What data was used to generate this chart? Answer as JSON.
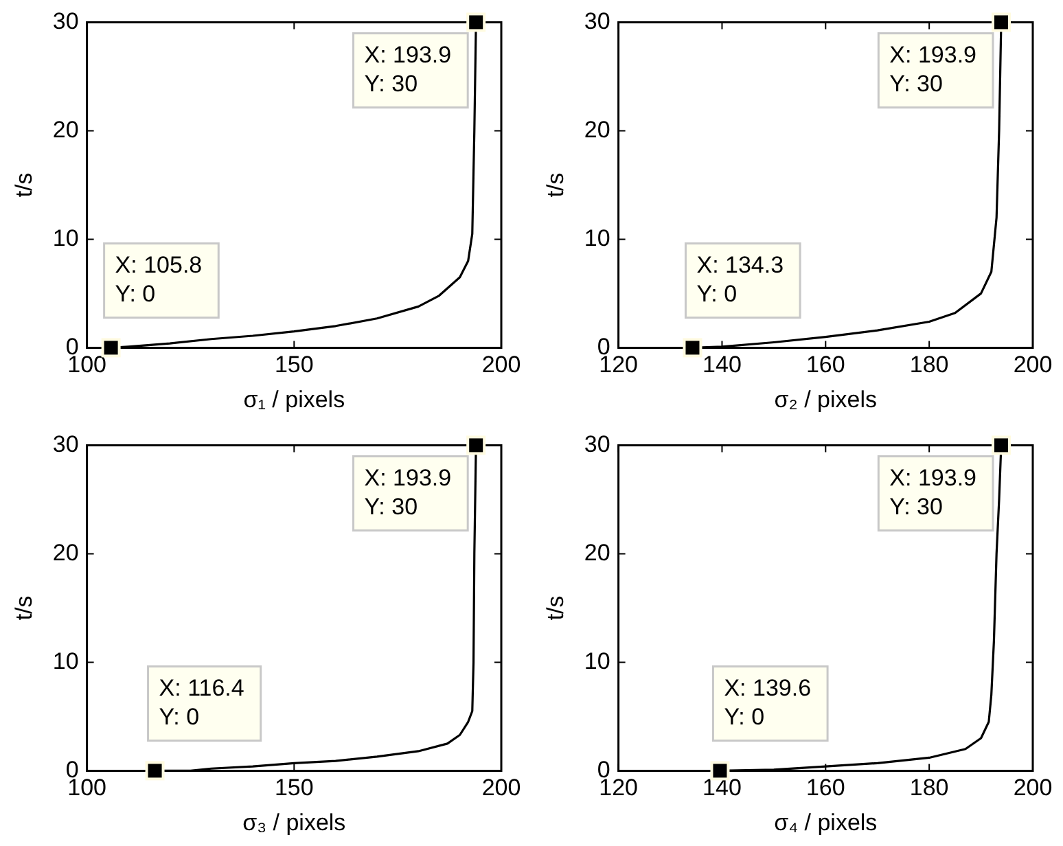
{
  "chart_data": [
    {
      "type": "line",
      "xlabel": "σ₁ / pixels",
      "ylabel": "t/s",
      "xlim": [
        100,
        200
      ],
      "xticks": [
        100,
        150,
        200
      ],
      "ylim": [
        0,
        30
      ],
      "yticks": [
        0,
        10,
        20,
        30
      ],
      "grid": false,
      "legend": false,
      "marker": "none",
      "line_style": "solid",
      "series": [
        {
          "color": "#000000",
          "x": [
            105.8,
            110,
            120,
            130,
            140,
            150,
            160,
            170,
            180,
            185,
            190,
            192,
            193,
            193.5,
            193.9
          ],
          "values": [
            0,
            0.1,
            0.4,
            0.8,
            1.1,
            1.5,
            2.0,
            2.7,
            3.8,
            4.8,
            6.5,
            8,
            10.5,
            20,
            30
          ]
        }
      ],
      "annotations": [
        {
          "text": "X: 105.8\nY: 0",
          "x": 105.8,
          "y": 0
        },
        {
          "text": "X: 193.9\nY: 30",
          "x": 193.9,
          "y": 30
        }
      ]
    },
    {
      "type": "line",
      "xlabel": "σ₂ / pixels",
      "ylabel": "t/s",
      "xlim": [
        120,
        200
      ],
      "xticks": [
        120,
        140,
        160,
        180,
        200
      ],
      "ylim": [
        0,
        30
      ],
      "yticks": [
        0,
        10,
        20,
        30
      ],
      "grid": false,
      "legend": false,
      "marker": "none",
      "line_style": "solid",
      "series": [
        {
          "color": "#000000",
          "x": [
            134.3,
            140,
            150,
            160,
            170,
            180,
            185,
            190,
            192,
            193,
            193.5,
            193.9
          ],
          "values": [
            0,
            0.1,
            0.5,
            1.0,
            1.6,
            2.4,
            3.2,
            5,
            7,
            12,
            20,
            30
          ]
        }
      ],
      "annotations": [
        {
          "text": "X: 134.3\nY: 0",
          "x": 134.3,
          "y": 0
        },
        {
          "text": "X: 193.9\nY: 30",
          "x": 193.9,
          "y": 30
        }
      ]
    },
    {
      "type": "line",
      "xlabel": "σ₃ / pixels",
      "ylabel": "t/s",
      "xlim": [
        100,
        200
      ],
      "xticks": [
        100,
        150,
        200
      ],
      "ylim": [
        0,
        30
      ],
      "yticks": [
        0,
        10,
        20,
        30
      ],
      "grid": false,
      "legend": false,
      "marker": "none",
      "line_style": "solid",
      "series": [
        {
          "color": "#000000",
          "x": [
            116.4,
            125,
            130,
            140,
            150,
            160,
            170,
            180,
            187,
            190,
            192,
            193,
            193.3,
            193.5,
            193.9
          ],
          "values": [
            0,
            0,
            0.2,
            0.4,
            0.7,
            0.9,
            1.3,
            1.8,
            2.5,
            3.3,
            4.5,
            5.5,
            10,
            20,
            30
          ]
        }
      ],
      "annotations": [
        {
          "text": "X: 116.4\nY: 0",
          "x": 116.4,
          "y": 0
        },
        {
          "text": "X: 193.9\nY: 30",
          "x": 193.9,
          "y": 30
        }
      ]
    },
    {
      "type": "line",
      "xlabel": "σ₄ / pixels",
      "ylabel": "t/s",
      "xlim": [
        120,
        200
      ],
      "xticks": [
        120,
        140,
        160,
        180,
        200
      ],
      "ylim": [
        0,
        30
      ],
      "yticks": [
        0,
        10,
        20,
        30
      ],
      "grid": false,
      "legend": false,
      "marker": "none",
      "line_style": "solid",
      "series": [
        {
          "color": "#000000",
          "x": [
            139.6,
            150,
            160,
            170,
            180,
            187,
            190,
            191.5,
            192,
            192.5,
            193,
            193.5,
            193.9
          ],
          "values": [
            0,
            0.1,
            0.4,
            0.7,
            1.2,
            2,
            3,
            4.5,
            7,
            12,
            20,
            25,
            30
          ]
        }
      ],
      "annotations": [
        {
          "text": "X: 139.6\nY: 0",
          "x": 139.6,
          "y": 0
        },
        {
          "text": "X: 193.9\nY: 30",
          "x": 193.9,
          "y": 30
        }
      ]
    }
  ]
}
